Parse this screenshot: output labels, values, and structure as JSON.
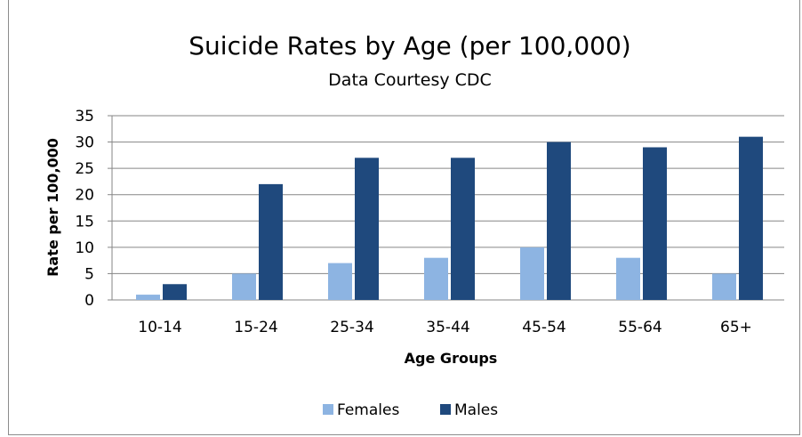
{
  "chart_data": {
    "type": "bar",
    "title": "Suicide Rates by Age (per 100,000)",
    "subtitle": "Data Courtesy CDC",
    "xlabel": "Age Groups",
    "ylabel": "Rate per 100,000",
    "categories": [
      "10-14",
      "15-24",
      "25-34",
      "35-44",
      "45-54",
      "55-64",
      "65+"
    ],
    "series": [
      {
        "name": "Females",
        "color": "#8DB4E2",
        "values": [
          1,
          5,
          7,
          8,
          10,
          8,
          5
        ]
      },
      {
        "name": "Males",
        "color": "#1F497D",
        "values": [
          3,
          22,
          27,
          27,
          30,
          29,
          31
        ]
      }
    ],
    "ylim": [
      0,
      35
    ],
    "yticks": [
      "0",
      "5",
      "10",
      "15",
      "20",
      "25",
      "30",
      "35"
    ],
    "grid": true,
    "legend_position": "bottom"
  }
}
